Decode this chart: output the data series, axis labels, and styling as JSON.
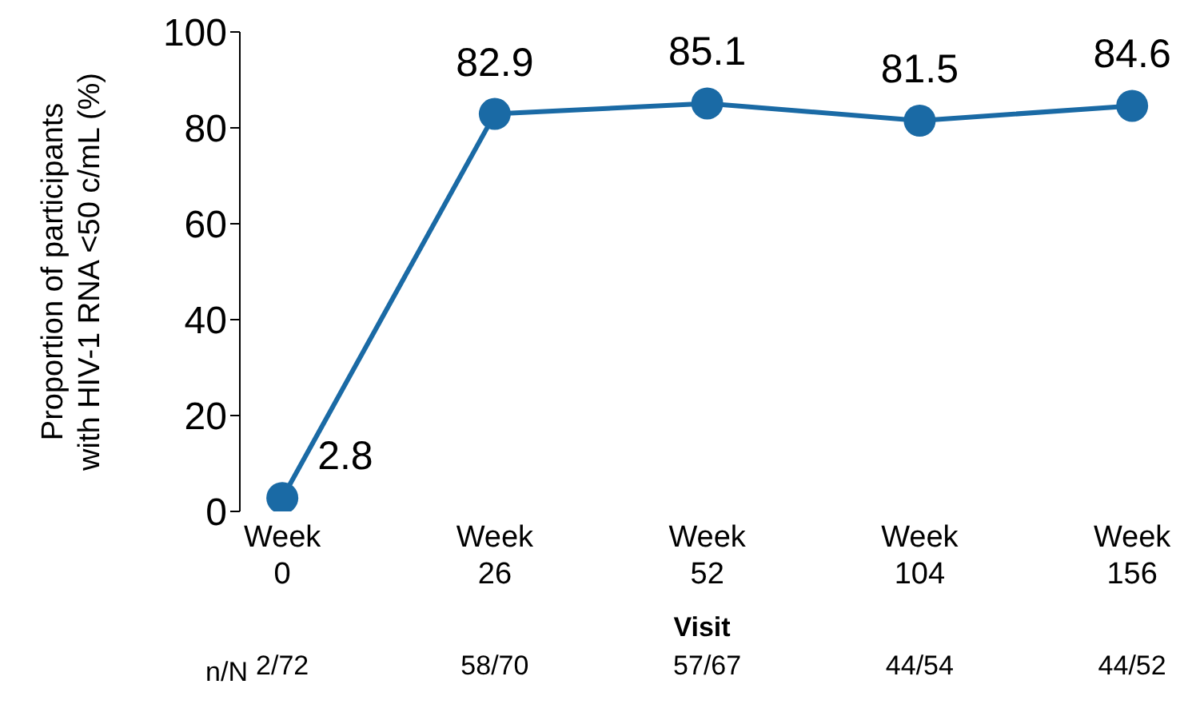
{
  "chart_data": {
    "type": "line",
    "xlabel": "Visit",
    "ylabel": "Proportion of participants with HIV-1 RNA <50 c/mL (%)",
    "categories": [
      "Week 0",
      "Week 26",
      "Week 52",
      "Week 104",
      "Week 156"
    ],
    "series": [
      {
        "color": "#1a6aa5",
        "values": [
          2.8,
          82.9,
          85.1,
          81.5,
          84.6
        ]
      }
    ],
    "ylim": [
      0,
      100
    ],
    "yticks": [
      0,
      20,
      40,
      60,
      80,
      100
    ],
    "marker": "circle",
    "line_style": "solid",
    "grid": false,
    "legend": false,
    "data_labels": true,
    "annotations": [
      "n/N",
      "2/72",
      "58/70",
      "57/67",
      "44/54",
      "44/52"
    ]
  }
}
